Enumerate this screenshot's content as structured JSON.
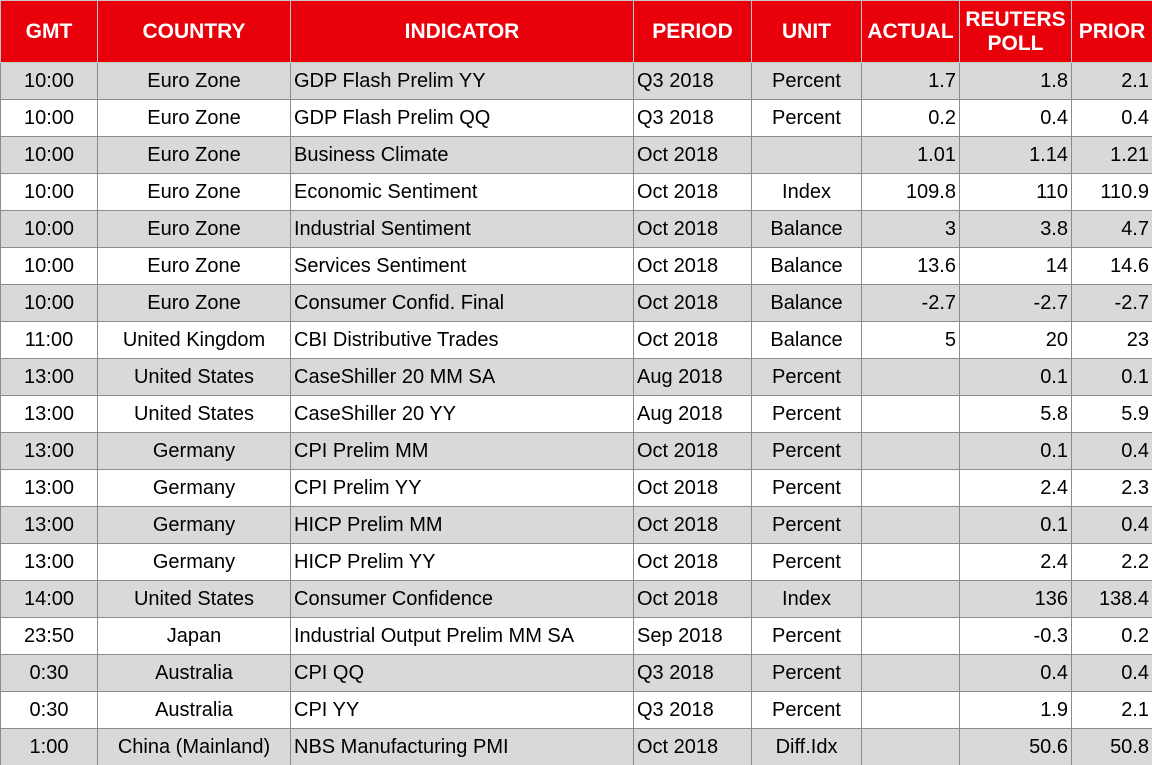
{
  "table": {
    "columns": [
      "GMT",
      "COUNTRY",
      "INDICATOR",
      "PERIOD",
      "UNIT",
      "ACTUAL",
      "REUTERS POLL",
      "PRIOR"
    ],
    "rows": [
      [
        "10:00",
        "Euro Zone",
        "GDP Flash Prelim YY",
        "Q3 2018",
        "Percent",
        "1.7",
        "1.8",
        "2.1"
      ],
      [
        "10:00",
        "Euro Zone",
        "GDP Flash Prelim QQ",
        "Q3 2018",
        "Percent",
        "0.2",
        "0.4",
        "0.4"
      ],
      [
        "10:00",
        "Euro Zone",
        "Business Climate",
        "Oct 2018",
        null,
        "1.01",
        "1.14",
        "1.21"
      ],
      [
        "10:00",
        "Euro Zone",
        "Economic Sentiment",
        "Oct 2018",
        "Index",
        "109.8",
        "110",
        "110.9"
      ],
      [
        "10:00",
        "Euro Zone",
        "Industrial Sentiment",
        "Oct 2018",
        "Balance",
        "3",
        "3.8",
        "4.7"
      ],
      [
        "10:00",
        "Euro Zone",
        "Services Sentiment",
        "Oct 2018",
        "Balance",
        "13.6",
        "14",
        "14.6"
      ],
      [
        "10:00",
        "Euro Zone",
        "Consumer Confid. Final",
        "Oct 2018",
        "Balance",
        "-2.7",
        "-2.7",
        "-2.7"
      ],
      [
        "11:00",
        "United Kingdom",
        "CBI Distributive Trades",
        "Oct 2018",
        "Balance",
        "5",
        "20",
        "23"
      ],
      [
        "13:00",
        "United States",
        "CaseShiller 20 MM SA",
        "Aug 2018",
        "Percent",
        null,
        "0.1",
        "0.1"
      ],
      [
        "13:00",
        "United States",
        "CaseShiller 20 YY",
        "Aug 2018",
        "Percent",
        null,
        "5.8",
        "5.9"
      ],
      [
        "13:00",
        "Germany",
        "CPI Prelim MM",
        "Oct 2018",
        "Percent",
        null,
        "0.1",
        "0.4"
      ],
      [
        "13:00",
        "Germany",
        "CPI Prelim YY",
        "Oct 2018",
        "Percent",
        null,
        "2.4",
        "2.3"
      ],
      [
        "13:00",
        "Germany",
        "HICP Prelim MM",
        "Oct 2018",
        "Percent",
        null,
        "0.1",
        "0.4"
      ],
      [
        "13:00",
        "Germany",
        "HICP Prelim YY",
        "Oct 2018",
        "Percent",
        null,
        "2.4",
        "2.2"
      ],
      [
        "14:00",
        "United States",
        "Consumer Confidence",
        "Oct 2018",
        "Index",
        null,
        "136",
        "138.4"
      ],
      [
        "23:50",
        "Japan",
        "Industrial Output Prelim MM SA",
        "Sep 2018",
        "Percent",
        null,
        "-0.3",
        "0.2"
      ],
      [
        "0:30",
        "Australia",
        "CPI QQ",
        "Q3 2018",
        "Percent",
        null,
        "0.4",
        "0.4"
      ],
      [
        "0:30",
        "Australia",
        "CPI YY",
        "Q3 2018",
        "Percent",
        null,
        "1.9",
        "2.1"
      ],
      [
        "1:00",
        "China (Mainland)",
        "NBS Manufacturing PMI",
        "Oct 2018",
        "Diff.Idx",
        null,
        "50.6",
        "50.8"
      ]
    ]
  }
}
